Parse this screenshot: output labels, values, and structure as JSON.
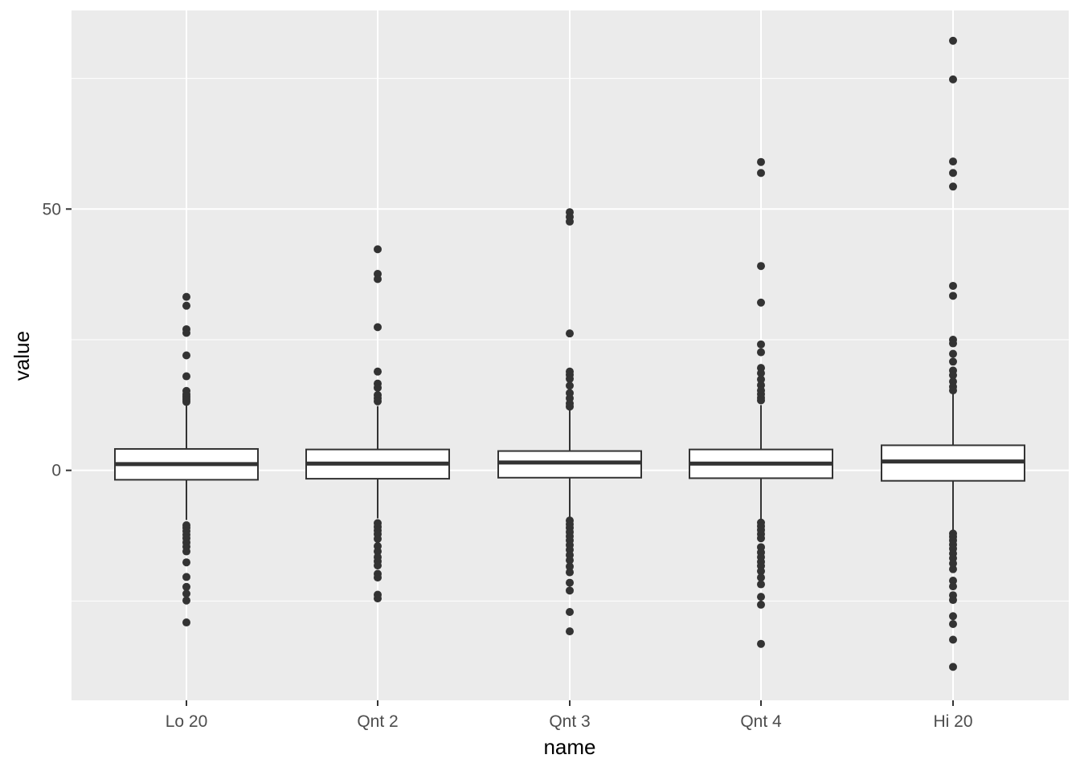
{
  "chart_data": {
    "type": "boxplot",
    "title": "",
    "xlabel": "name",
    "ylabel": "value",
    "ylim": [
      -44,
      88
    ],
    "y_ticks": [
      0,
      50
    ],
    "y_tick_labels": [
      "0",
      "50"
    ],
    "grid": true,
    "legend": "none",
    "colors": {
      "panel_background": "#ebebeb",
      "grid_major": "#ffffff",
      "grid_minor": "#f5f5f5",
      "box_fill": "#ffffff",
      "box_line": "#333333",
      "outlier": "#333333"
    },
    "categories": [
      "Lo 20",
      "Qnt 2",
      "Qnt 3",
      "Qnt 4",
      "Hi 20"
    ],
    "series": [
      {
        "category": "Lo 20",
        "whisker_low": -9.5,
        "q1": -1.8,
        "median": 1.2,
        "q3": 4.1,
        "whisker_high": 12.7,
        "outliers": [
          33.2,
          31.5,
          27.0,
          26.3,
          22.0,
          18.0,
          15.2,
          14.6,
          14.2,
          13.9,
          13.5,
          13.1,
          -10.5,
          -11.0,
          -11.6,
          -12.3,
          -13.0,
          -13.8,
          -14.6,
          -15.5,
          -17.6,
          -20.4,
          -22.3,
          -23.6,
          -24.9,
          -29.1
        ]
      },
      {
        "category": "Qnt 2",
        "whisker_low": -9.2,
        "q1": -1.6,
        "median": 1.3,
        "q3": 4.0,
        "whisker_high": 12.3,
        "outliers": [
          42.3,
          37.6,
          36.6,
          27.4,
          18.9,
          16.6,
          15.8,
          14.4,
          13.8,
          13.2,
          -10.1,
          -10.8,
          -11.5,
          -12.2,
          -13.1,
          -14.5,
          -15.5,
          -16.6,
          -17.4,
          -18.2,
          -19.8,
          -20.5,
          -23.8,
          -24.5
        ],
        "_": ""
      },
      {
        "category": "Qnt 3",
        "whisker_low": -9.0,
        "q1": -1.4,
        "median": 1.5,
        "q3": 3.7,
        "whisker_high": 11.8,
        "outliers": [
          49.4,
          48.5,
          47.6,
          26.2,
          18.9,
          18.3,
          17.5,
          16.2,
          14.8,
          13.8,
          12.8,
          12.2,
          -9.6,
          -10.3,
          -11.0,
          -11.8,
          -12.6,
          -13.4,
          -14.3,
          -15.2,
          -16.2,
          -17.2,
          -18.4,
          -19.5,
          -21.5,
          -23.0,
          -27.1,
          -30.8
        ],
        "_": ""
      },
      {
        "category": "Qnt 4",
        "whisker_low": -9.3,
        "q1": -1.5,
        "median": 1.3,
        "q3": 4.0,
        "whisker_high": 12.5,
        "outliers": [
          59.0,
          56.9,
          39.1,
          32.1,
          24.1,
          22.6,
          19.6,
          18.6,
          17.4,
          16.3,
          15.3,
          14.6,
          13.9,
          13.4,
          -10.0,
          -10.7,
          -11.4,
          -12.2,
          -13.0,
          -14.7,
          -15.7,
          -16.6,
          -17.5,
          -18.3,
          -19.3,
          -20.5,
          -21.8,
          -24.2,
          -25.7,
          -33.2
        ],
        "_": ""
      },
      {
        "category": "Hi 20",
        "whisker_low": -11.5,
        "q1": -2.0,
        "median": 1.7,
        "q3": 4.8,
        "whisker_high": 14.8,
        "outliers": [
          82.2,
          74.8,
          59.1,
          56.9,
          54.3,
          35.3,
          33.4,
          25.0,
          24.3,
          22.3,
          20.8,
          19.1,
          18.2,
          17.0,
          16.0,
          15.3,
          -12.1,
          -12.7,
          -13.4,
          -14.2,
          -15.0,
          -15.9,
          -16.8,
          -17.8,
          -18.9,
          -21.1,
          -22.2,
          -23.9,
          -24.8,
          -27.9,
          -29.4,
          -32.4,
          -37.6
        ],
        "_": ""
      }
    ]
  }
}
